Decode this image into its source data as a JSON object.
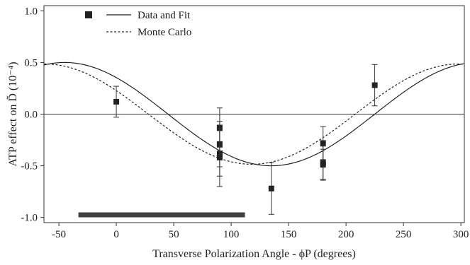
{
  "chart_data": {
    "type": "scatter",
    "xlabel": "Transverse Polarization Angle - ϕP  (degrees)",
    "ylabel": "ATP effect on D̃ (10⁻⁴)",
    "xlim": [
      -63,
      303
    ],
    "ylim": [
      -1.05,
      1.05
    ],
    "x_ticks": [
      -50,
      0,
      50,
      100,
      150,
      200,
      250,
      300
    ],
    "y_ticks": [
      1.0,
      0.5,
      0.0,
      -0.5,
      -1.0
    ],
    "x_tick_labels": [
      "-50",
      "0",
      "50",
      "100",
      "150",
      "200",
      "250",
      "300"
    ],
    "y_tick_labels": [
      "1.0",
      "0.5",
      "0.0",
      "-0.5",
      "-1.0"
    ],
    "grid": false,
    "legend_position": "top-left",
    "legend": [
      {
        "label": "Data and Fit",
        "style": "square-marker-and-solid-line"
      },
      {
        "label": "Monte Carlo",
        "style": "dashed-line"
      }
    ],
    "series": [
      {
        "name": "Data and Fit",
        "kind": "points",
        "points": [
          {
            "x": 0,
            "y": 0.12,
            "err": 0.15
          },
          {
            "x": 90,
            "y": -0.13,
            "err": 0.19
          },
          {
            "x": 90,
            "y": -0.29,
            "err": 0.22
          },
          {
            "x": 90,
            "y": -0.38,
            "err": 0.22
          },
          {
            "x": 90,
            "y": -0.42,
            "err": 0.28
          },
          {
            "x": 135,
            "y": -0.72,
            "err": 0.25
          },
          {
            "x": 180,
            "y": -0.28,
            "err": 0.16
          },
          {
            "x": 180,
            "y": -0.47,
            "err": 0.16
          },
          {
            "x": 180,
            "y": -0.49,
            "err": 0.15
          },
          {
            "x": 225,
            "y": 0.28,
            "err": 0.2
          }
        ]
      },
      {
        "name": "Data and Fit",
        "kind": "line",
        "style": "solid",
        "function": {
          "amplitude": 0.5,
          "peak_deg": -45,
          "period_deg": 360
        }
      },
      {
        "name": "Monte Carlo",
        "kind": "line",
        "style": "dashed",
        "function": {
          "amplitude": 0.485,
          "peak_deg": -62,
          "period_deg": 360
        }
      }
    ],
    "annotations": [
      {
        "kind": "horizontal-line",
        "y": 0.0
      },
      {
        "kind": "horizontal-bar",
        "x_start": -33,
        "x_end": 112,
        "y": -0.975,
        "color": "#404040"
      }
    ]
  }
}
